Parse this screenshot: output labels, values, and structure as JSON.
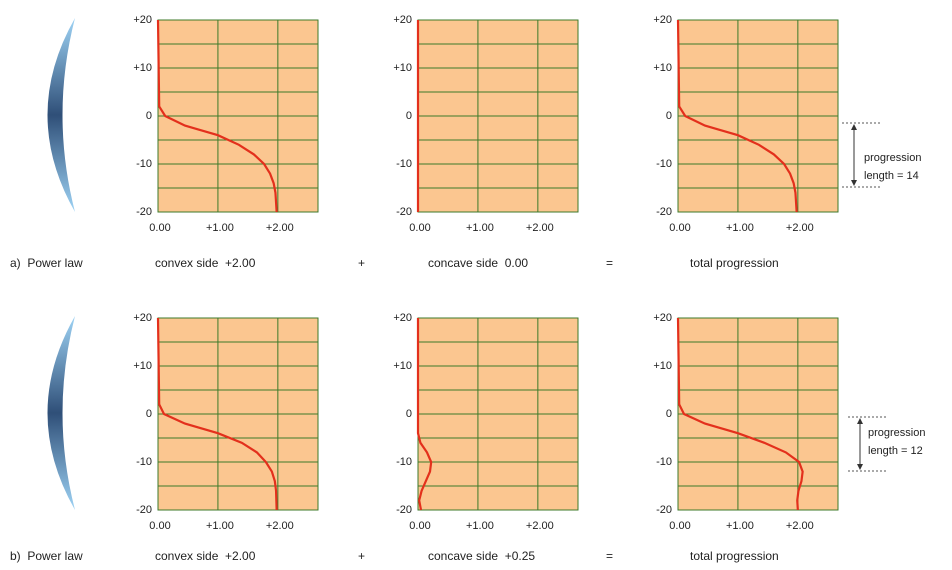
{
  "chart_data": [
    {
      "type": "line",
      "x": [
        0,
        0.02,
        0.12,
        0.45,
        1.0,
        1.35,
        1.6,
        1.77,
        1.87,
        1.93,
        1.96,
        1.98
      ],
      "series": [
        {
          "color": "#e3301c",
          "values": [
            20,
            2,
            0,
            -2,
            -4,
            -6,
            -8,
            -10,
            -12,
            -14,
            -16,
            -20
          ]
        }
      ],
      "xlim": [
        0,
        2.67
      ],
      "ylim": [
        -20,
        20
      ],
      "xticks": [
        {
          "value": 0,
          "label": "0.00"
        },
        {
          "value": 1,
          "label": "+1.00"
        },
        {
          "value": 2,
          "label": "+2.00"
        }
      ],
      "yticks": [
        {
          "value": 20,
          "label": "+20"
        },
        {
          "value": 10,
          "label": "+10"
        },
        0,
        -10,
        -20
      ],
      "yminorticks": [
        15,
        5,
        -5,
        -15
      ],
      "grid": true,
      "background": "#fbc690",
      "grid_color": "#3d7a2a"
    },
    {
      "type": "line",
      "x": [
        0,
        0
      ],
      "series": [
        {
          "color": "#e3301c",
          "values": [
            20,
            -20
          ]
        }
      ],
      "xlim": [
        0,
        2.67
      ],
      "ylim": [
        -20,
        20
      ],
      "xticks": [
        {
          "value": 0,
          "label": "0.00"
        },
        {
          "value": 1,
          "label": "+1.00"
        },
        {
          "value": 2,
          "label": "+2.00"
        }
      ],
      "yticks": [
        {
          "value": 20,
          "label": "+20"
        },
        {
          "value": 10,
          "label": "+10"
        },
        0,
        -10,
        -20
      ],
      "yminorticks": [
        15,
        5,
        -5,
        -15
      ],
      "grid": true,
      "background": "#fbc690",
      "grid_color": "#3d7a2a"
    },
    {
      "type": "line",
      "x": [
        0,
        0.02,
        0.12,
        0.45,
        1.0,
        1.35,
        1.6,
        1.77,
        1.87,
        1.93,
        1.96,
        1.98
      ],
      "series": [
        {
          "color": "#e3301c",
          "values": [
            20,
            2,
            0,
            -2,
            -4,
            -6,
            -8,
            -10,
            -12,
            -14,
            -16,
            -20
          ]
        }
      ],
      "xlim": [
        0,
        2.67
      ],
      "ylim": [
        -20,
        20
      ],
      "xticks": [
        {
          "value": 0,
          "label": "0.00"
        },
        {
          "value": 1,
          "label": "+1.00"
        },
        {
          "value": 2,
          "label": "+2.00"
        }
      ],
      "yticks": [
        {
          "value": 20,
          "label": "+20"
        },
        {
          "value": 10,
          "label": "+10"
        },
        0,
        -10,
        -20
      ],
      "yminorticks": [
        15,
        5,
        -5,
        -15
      ],
      "grid": true,
      "background": "#fbc690",
      "grid_color": "#3d7a2a",
      "annotation": [
        "progression",
        "length = 14"
      ]
    },
    {
      "type": "line",
      "x": [
        0,
        0.02,
        0.1,
        0.45,
        1.0,
        1.4,
        1.65,
        1.8,
        1.9,
        1.95,
        1.97,
        1.98
      ],
      "series": [
        {
          "color": "#e3301c",
          "values": [
            20,
            2,
            0,
            -2,
            -4,
            -6,
            -8,
            -10,
            -12,
            -14,
            -16,
            -20
          ]
        }
      ],
      "xlim": [
        0,
        2.67
      ],
      "ylim": [
        -20,
        20
      ],
      "xticks": [
        {
          "value": 0,
          "label": "0.00"
        },
        {
          "value": 1,
          "label": "+1.00"
        },
        {
          "value": 2,
          "label": "+2.00"
        }
      ],
      "yticks": [
        {
          "value": 20,
          "label": "+20"
        },
        {
          "value": 10,
          "label": "+10"
        },
        0,
        -10,
        -20
      ],
      "yminorticks": [
        15,
        5,
        -5,
        -15
      ],
      "grid": true,
      "background": "#fbc690",
      "grid_color": "#3d7a2a"
    },
    {
      "type": "line",
      "x": [
        0,
        0,
        0.04,
        0.15,
        0.22,
        0.2,
        0.13,
        0.06,
        0.02,
        0.05
      ],
      "series": [
        {
          "color": "#e3301c",
          "values": [
            20,
            -4,
            -6,
            -8,
            -10,
            -12,
            -14,
            -16,
            -18,
            -20
          ]
        }
      ],
      "xlim": [
        0,
        2.67
      ],
      "ylim": [
        -20,
        20
      ],
      "xticks": [
        {
          "value": 0,
          "label": "0.00"
        },
        {
          "value": 1,
          "label": "+1.00"
        },
        {
          "value": 2,
          "label": "+2.00"
        }
      ],
      "yticks": [
        {
          "value": 20,
          "label": "+20"
        },
        {
          "value": 10,
          "label": "+10"
        },
        0,
        -10,
        -20
      ],
      "yminorticks": [
        15,
        5,
        -5,
        -15
      ],
      "grid": true,
      "background": "#fbc690",
      "grid_color": "#3d7a2a"
    },
    {
      "type": "line",
      "x": [
        0,
        0.02,
        0.1,
        0.45,
        1.0,
        1.44,
        1.8,
        2.02,
        2.08,
        2.06,
        2.01,
        1.99,
        2.0
      ],
      "series": [
        {
          "color": "#e3301c",
          "values": [
            20,
            2,
            0,
            -2,
            -4,
            -6,
            -8,
            -10,
            -12,
            -14,
            -16,
            -18,
            -20
          ]
        }
      ],
      "xlim": [
        0,
        2.67
      ],
      "ylim": [
        -20,
        20
      ],
      "xticks": [
        {
          "value": 0,
          "label": "0.00"
        },
        {
          "value": 1,
          "label": "+1.00"
        },
        {
          "value": 2,
          "label": "+2.00"
        }
      ],
      "yticks": [
        {
          "value": 20,
          "label": "+20"
        },
        {
          "value": 10,
          "label": "+10"
        },
        0,
        -10,
        -20
      ],
      "yminorticks": [
        15,
        5,
        -5,
        -15
      ],
      "grid": true,
      "background": "#fbc690",
      "grid_color": "#3d7a2a",
      "annotation": [
        "progression",
        "length = 12"
      ]
    }
  ],
  "rows": [
    {
      "label": "a)  Power law",
      "items": [
        "convex side  +2.00",
        "+",
        "concave side  0.00",
        "=",
        "total progression"
      ]
    },
    {
      "label": "b)  Power law",
      "items": [
        "convex side  +2.00",
        "+",
        "concave side  +0.25",
        "=",
        "total progression"
      ]
    }
  ]
}
